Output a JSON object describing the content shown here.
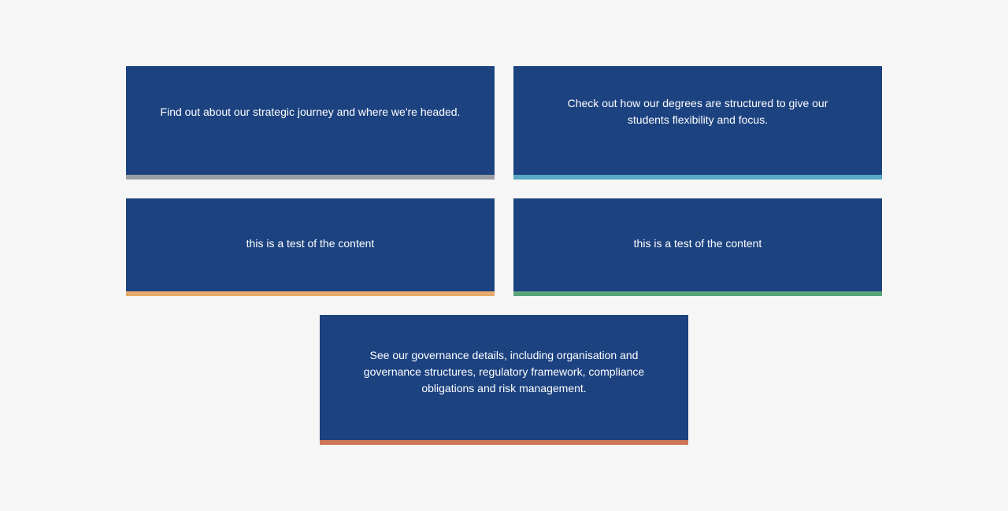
{
  "cards": [
    {
      "text": "Find out about our strategic journey and where we're headed.",
      "accent_color": "#9a9ea4"
    },
    {
      "text": "Check out how our degrees are structured to give our students flexibility and focus.",
      "accent_color": "#57a8c4"
    },
    {
      "text": "this is a test of the content",
      "accent_color": "#e4ab6a"
    },
    {
      "text": "this is a test of the content",
      "accent_color": "#5aa57c"
    },
    {
      "text": "See our governance details, including organisation and governance structures, regulatory framework, compliance obligations and risk management.",
      "accent_color": "#cf7659"
    }
  ],
  "colors": {
    "page_background": "#f6f6f6",
    "card_background": "#1c4280",
    "card_text": "#ffffff"
  }
}
